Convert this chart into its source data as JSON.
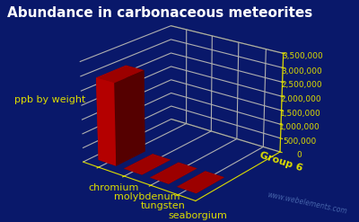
{
  "title": "Abundance in carbonaceous meteorites",
  "ylabel": "ppb by weight",
  "group_label": "Group 6",
  "watermark": "www.webelements.com",
  "categories": [
    "chromium",
    "molybdenum",
    "tungsten",
    "seaborgium"
  ],
  "values": [
    2900000,
    140,
    40,
    0
  ],
  "ylim": [
    0,
    3500000
  ],
  "yticks": [
    0,
    500000,
    1000000,
    1500000,
    2000000,
    2500000,
    3000000,
    3500000
  ],
  "ytick_labels": [
    "0",
    "500,000",
    "1,000,000",
    "1,500,000",
    "2,000,000",
    "2,500,000",
    "3,000,000",
    "3,500,000"
  ],
  "background_color": "#09186a",
  "bar_color": "#cc0000",
  "grid_color": "#dddd00",
  "title_color": "#ffffff",
  "label_color": "#dddd00",
  "watermark_color": "#5577bb",
  "title_fontsize": 11,
  "label_fontsize": 8,
  "tick_fontsize": 6.5,
  "elev": 22,
  "azim": -52
}
